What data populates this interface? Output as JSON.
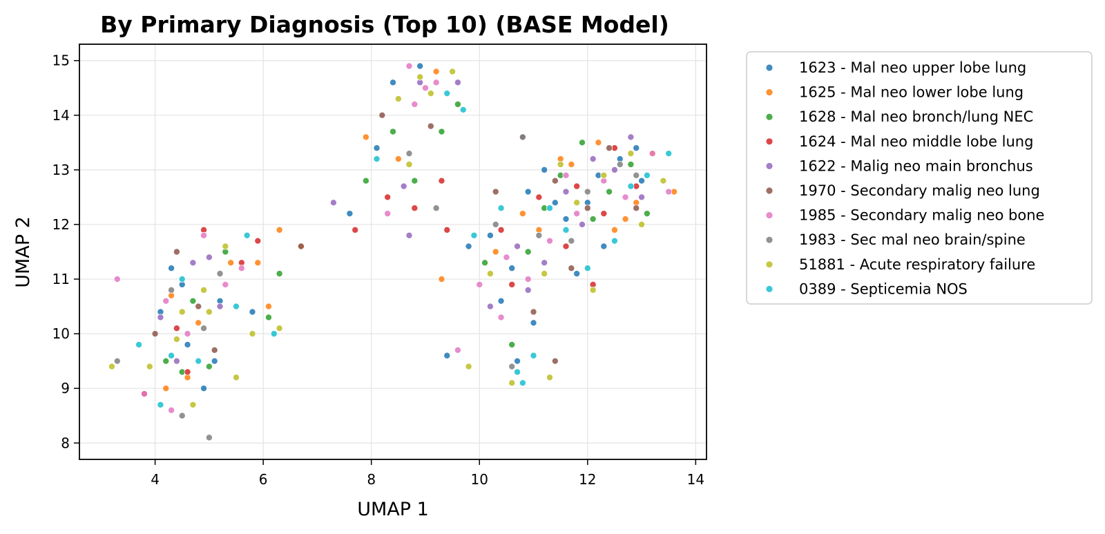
{
  "chart_data": {
    "type": "scatter",
    "title": "By Primary Diagnosis (Top 10) (BASE Model)",
    "xlabel": "UMAP 1",
    "ylabel": "UMAP 2",
    "xlim": [
      2.6,
      14.2
    ],
    "ylim": [
      7.7,
      15.3
    ],
    "xticks": [
      4,
      6,
      8,
      10,
      12,
      14
    ],
    "yticks": [
      8,
      9,
      10,
      11,
      12,
      13,
      14,
      15
    ],
    "grid": true,
    "legend_position": "outside-right",
    "series": [
      {
        "name": "1623 - Mal neo upper lobe lung",
        "color": "#1f77b4",
        "points": [
          [
            4.1,
            10.4
          ],
          [
            4.6,
            9.8
          ],
          [
            4.9,
            9.0
          ],
          [
            5.2,
            10.6
          ],
          [
            4.3,
            11.2
          ],
          [
            5.8,
            10.4
          ],
          [
            7.6,
            12.2
          ],
          [
            8.1,
            13.4
          ],
          [
            8.4,
            14.6
          ],
          [
            8.9,
            14.9
          ],
          [
            9.4,
            9.6
          ],
          [
            10.2,
            11.8
          ],
          [
            10.6,
            11.2
          ],
          [
            10.9,
            12.6
          ],
          [
            11.2,
            13.0
          ],
          [
            11.6,
            12.1
          ],
          [
            12.0,
            12.4
          ],
          [
            12.3,
            11.6
          ],
          [
            12.6,
            13.2
          ],
          [
            13.0,
            12.8
          ],
          [
            10.4,
            10.6
          ],
          [
            11.0,
            10.2
          ],
          [
            10.7,
            9.5
          ],
          [
            11.8,
            11.1
          ],
          [
            12.9,
            13.4
          ],
          [
            9.8,
            11.6
          ],
          [
            11.4,
            12.4
          ],
          [
            5.1,
            9.5
          ],
          [
            4.5,
            10.9
          ],
          [
            12.2,
            12.9
          ]
        ]
      },
      {
        "name": "1625 - Mal neo lower lobe lung",
        "color": "#ff7f0e",
        "points": [
          [
            4.3,
            10.7
          ],
          [
            4.8,
            10.2
          ],
          [
            5.4,
            11.3
          ],
          [
            4.6,
            9.2
          ],
          [
            6.1,
            10.5
          ],
          [
            6.3,
            11.9
          ],
          [
            6.7,
            11.6
          ],
          [
            7.9,
            13.6
          ],
          [
            8.5,
            13.2
          ],
          [
            9.2,
            14.8
          ],
          [
            9.3,
            11.0
          ],
          [
            10.3,
            11.5
          ],
          [
            11.1,
            11.9
          ],
          [
            11.7,
            13.1
          ],
          [
            12.2,
            13.5
          ],
          [
            12.7,
            12.1
          ],
          [
            13.2,
            13.3
          ],
          [
            13.6,
            12.6
          ],
          [
            10.8,
            12.2
          ],
          [
            12.5,
            11.9
          ],
          [
            4.2,
            9.0
          ],
          [
            5.9,
            11.3
          ],
          [
            11.5,
            13.2
          ],
          [
            12.9,
            12.4
          ]
        ]
      },
      {
        "name": "1628 - Mal neo bronch/lung NEC",
        "color": "#2ca02c",
        "points": [
          [
            4.2,
            9.5
          ],
          [
            4.7,
            10.6
          ],
          [
            5.0,
            9.4
          ],
          [
            5.3,
            11.5
          ],
          [
            6.1,
            10.3
          ],
          [
            6.3,
            11.1
          ],
          [
            7.9,
            12.8
          ],
          [
            8.4,
            13.7
          ],
          [
            9.3,
            13.7
          ],
          [
            9.6,
            14.2
          ],
          [
            10.1,
            11.3
          ],
          [
            10.9,
            11.5
          ],
          [
            11.5,
            12.9
          ],
          [
            11.9,
            13.5
          ],
          [
            12.4,
            12.6
          ],
          [
            12.8,
            13.1
          ],
          [
            13.1,
            12.2
          ],
          [
            4.5,
            9.3
          ],
          [
            10.6,
            9.8
          ],
          [
            11.2,
            12.3
          ],
          [
            8.8,
            12.8
          ],
          [
            12.1,
            12.1
          ]
        ]
      },
      {
        "name": "1624 - Mal neo middle lobe lung",
        "color": "#d62728",
        "points": [
          [
            4.4,
            10.1
          ],
          [
            4.6,
            9.3
          ],
          [
            3.8,
            8.9
          ],
          [
            5.6,
            11.3
          ],
          [
            5.9,
            11.7
          ],
          [
            7.7,
            11.9
          ],
          [
            8.3,
            12.5
          ],
          [
            8.8,
            12.3
          ],
          [
            9.3,
            12.8
          ],
          [
            9.4,
            11.9
          ],
          [
            10.4,
            11.9
          ],
          [
            11.1,
            12.5
          ],
          [
            11.8,
            12.7
          ],
          [
            12.1,
            10.9
          ],
          [
            12.5,
            13.4
          ],
          [
            12.9,
            12.7
          ],
          [
            11.6,
            11.6
          ],
          [
            4.9,
            11.9
          ],
          [
            10.6,
            10.9
          ],
          [
            12.3,
            12.2
          ]
        ]
      },
      {
        "name": "1622 - Malig neo main bronchus",
        "color": "#9467bd",
        "points": [
          [
            4.1,
            10.3
          ],
          [
            4.7,
            11.3
          ],
          [
            5.2,
            10.5
          ],
          [
            4.4,
            9.5
          ],
          [
            7.3,
            12.4
          ],
          [
            8.6,
            12.7
          ],
          [
            8.9,
            14.6
          ],
          [
            9.6,
            14.6
          ],
          [
            10.2,
            10.5
          ],
          [
            10.7,
            11.6
          ],
          [
            11.2,
            11.3
          ],
          [
            11.6,
            12.6
          ],
          [
            12.1,
            13.2
          ],
          [
            12.5,
            13.0
          ],
          [
            13.0,
            12.5
          ],
          [
            8.7,
            11.8
          ],
          [
            10.9,
            10.8
          ],
          [
            12.8,
            13.6
          ],
          [
            5.0,
            11.4
          ],
          [
            11.9,
            12.0
          ]
        ]
      },
      {
        "name": "1970 - Secondary malig neo lung",
        "color": "#8c564b",
        "points": [
          [
            4.0,
            10.0
          ],
          [
            4.8,
            10.5
          ],
          [
            5.1,
            9.7
          ],
          [
            6.7,
            11.6
          ],
          [
            8.2,
            14.0
          ],
          [
            9.1,
            13.8
          ],
          [
            10.3,
            12.6
          ],
          [
            11.0,
            10.4
          ],
          [
            11.4,
            12.8
          ],
          [
            11.7,
            11.2
          ],
          [
            12.4,
            13.4
          ],
          [
            10.8,
            13.6
          ],
          [
            11.4,
            9.5
          ],
          [
            12.9,
            12.3
          ],
          [
            4.4,
            11.5
          ],
          [
            12.0,
            12.3
          ]
        ]
      },
      {
        "name": "1985 - Secondary malig neo bone",
        "color": "#e377c2",
        "points": [
          [
            3.3,
            11.0
          ],
          [
            3.8,
            8.9
          ],
          [
            4.2,
            10.6
          ],
          [
            4.6,
            10.0
          ],
          [
            4.9,
            11.8
          ],
          [
            5.6,
            11.2
          ],
          [
            4.3,
            8.6
          ],
          [
            8.3,
            12.2
          ],
          [
            8.7,
            14.9
          ],
          [
            9.0,
            14.5
          ],
          [
            9.2,
            14.6
          ],
          [
            9.6,
            9.7
          ],
          [
            10.0,
            10.9
          ],
          [
            10.5,
            11.4
          ],
          [
            10.9,
            11.0
          ],
          [
            11.3,
            11.7
          ],
          [
            11.8,
            12.2
          ],
          [
            12.3,
            12.8
          ],
          [
            12.7,
            12.5
          ],
          [
            13.2,
            13.3
          ],
          [
            13.5,
            12.6
          ],
          [
            10.4,
            10.3
          ],
          [
            8.8,
            14.2
          ],
          [
            11.6,
            12.9
          ],
          [
            5.3,
            10.9
          ]
        ]
      },
      {
        "name": "1983 - Sec mal neo brain/spine",
        "color": "#7f7f7f",
        "points": [
          [
            4.5,
            8.5
          ],
          [
            5.0,
            8.1
          ],
          [
            4.3,
            10.8
          ],
          [
            5.2,
            11.1
          ],
          [
            9.2,
            12.3
          ],
          [
            10.8,
            13.6
          ],
          [
            10.3,
            12.0
          ],
          [
            11.1,
            11.8
          ],
          [
            12.0,
            12.6
          ],
          [
            12.6,
            13.1
          ],
          [
            10.6,
            9.4
          ],
          [
            11.7,
            11.7
          ],
          [
            8.7,
            13.3
          ],
          [
            3.3,
            9.5
          ],
          [
            4.9,
            10.1
          ],
          [
            12.9,
            12.9
          ]
        ]
      },
      {
        "name": "51881 - Acute respiratory failure",
        "color": "#bcbd22",
        "points": [
          [
            3.2,
            9.4
          ],
          [
            3.9,
            9.4
          ],
          [
            4.5,
            10.4
          ],
          [
            4.9,
            10.8
          ],
          [
            5.3,
            11.6
          ],
          [
            4.7,
            8.7
          ],
          [
            5.5,
            9.2
          ],
          [
            6.3,
            10.1
          ],
          [
            5.8,
            10.0
          ],
          [
            8.5,
            14.3
          ],
          [
            8.9,
            14.7
          ],
          [
            9.5,
            14.8
          ],
          [
            9.1,
            14.4
          ],
          [
            8.7,
            13.1
          ],
          [
            9.8,
            9.4
          ],
          [
            10.6,
            9.1
          ],
          [
            11.3,
            9.2
          ],
          [
            10.2,
            11.1
          ],
          [
            11.2,
            11.1
          ],
          [
            11.8,
            12.4
          ],
          [
            12.3,
            12.9
          ],
          [
            12.8,
            13.3
          ],
          [
            13.0,
            12.0
          ],
          [
            13.4,
            12.8
          ],
          [
            12.1,
            10.8
          ],
          [
            5.0,
            10.4
          ],
          [
            4.4,
            9.9
          ],
          [
            11.5,
            13.1
          ]
        ]
      },
      {
        "name": "0389 - Septicemia NOS",
        "color": "#17becf",
        "points": [
          [
            3.7,
            9.8
          ],
          [
            4.1,
            8.7
          ],
          [
            4.5,
            11.0
          ],
          [
            4.8,
            9.5
          ],
          [
            5.5,
            10.5
          ],
          [
            5.7,
            11.8
          ],
          [
            6.2,
            10.0
          ],
          [
            8.1,
            13.2
          ],
          [
            9.4,
            14.4
          ],
          [
            9.7,
            14.1
          ],
          [
            10.4,
            12.3
          ],
          [
            10.7,
            9.3
          ],
          [
            10.8,
            9.1
          ],
          [
            11.0,
            9.6
          ],
          [
            11.3,
            12.3
          ],
          [
            12.0,
            11.2
          ],
          [
            12.8,
            12.7
          ],
          [
            13.5,
            13.3
          ],
          [
            9.9,
            11.8
          ],
          [
            11.6,
            11.9
          ],
          [
            12.5,
            11.7
          ],
          [
            4.3,
            9.6
          ],
          [
            13.1,
            12.9
          ]
        ]
      }
    ]
  }
}
